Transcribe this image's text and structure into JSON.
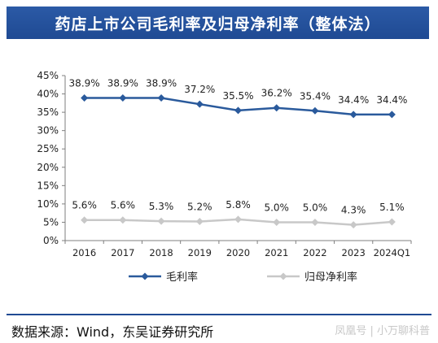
{
  "header": {
    "title": "药店上市公司毛利率及归母净利率（整体法）"
  },
  "footer": {
    "source": "数据来源：Wind，东吴证券研究所",
    "watermark": "凤凰号 | 小万聊科普"
  },
  "chart_data": {
    "type": "line",
    "title": "药店上市公司毛利率及归母净利率（整体法）",
    "categories": [
      "2016",
      "2017",
      "2018",
      "2019",
      "2020",
      "2021",
      "2022",
      "2023",
      "2024Q1"
    ],
    "series": [
      {
        "name": "毛利率",
        "values": [
          38.9,
          38.9,
          38.9,
          37.2,
          35.5,
          36.2,
          35.4,
          34.4,
          34.4
        ],
        "labels": [
          "38.9%",
          "38.9%",
          "38.9%",
          "37.2%",
          "35.5%",
          "36.2%",
          "35.4%",
          "34.4%",
          "34.4%"
        ],
        "color": "#2a5a9c",
        "marker": "diamond"
      },
      {
        "name": "归母净利率",
        "values": [
          5.6,
          5.6,
          5.3,
          5.2,
          5.8,
          5.0,
          5.0,
          4.3,
          5.1
        ],
        "labels": [
          "5.6%",
          "5.6%",
          "5.3%",
          "5.2%",
          "5.8%",
          "5.0%",
          "5.0%",
          "4.3%",
          "5.1%"
        ],
        "color": "#c8c8c8",
        "marker": "diamond"
      }
    ],
    "yticks": [
      "0%",
      "5%",
      "10%",
      "15%",
      "20%",
      "25%",
      "30%",
      "35%",
      "40%",
      "45%"
    ],
    "ylim": [
      0,
      45
    ],
    "xlabel": "",
    "ylabel": "",
    "legend_position": "bottom",
    "grid": false
  }
}
